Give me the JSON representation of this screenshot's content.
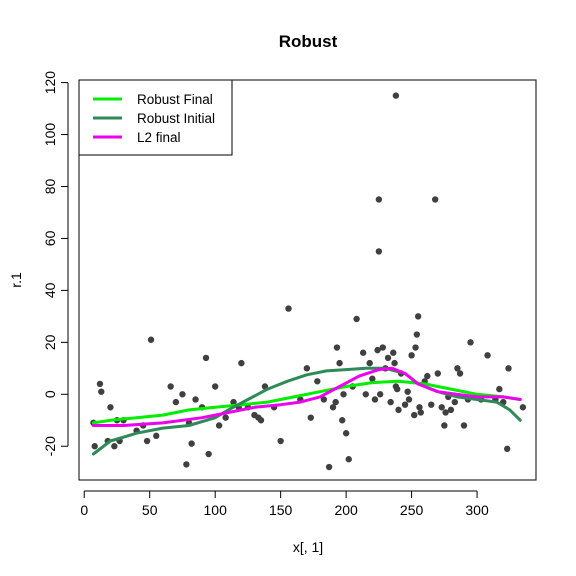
{
  "chart_data": {
    "type": "scatter",
    "title": "Robust",
    "xlabel": "x[, 1]",
    "ylabel": "r.1",
    "xlim": [
      -4,
      345
    ],
    "ylim": [
      -33,
      121
    ],
    "xticks": [
      0,
      50,
      100,
      150,
      200,
      250,
      300
    ],
    "yticks": [
      -20,
      0,
      20,
      40,
      60,
      80,
      100,
      120
    ],
    "grid": false,
    "legend_position": "top-left",
    "point_color": "#404040",
    "points": [
      [
        7,
        -11
      ],
      [
        8,
        -20
      ],
      [
        12,
        4
      ],
      [
        13,
        1
      ],
      [
        18,
        -18
      ],
      [
        20,
        -5
      ],
      [
        23,
        -20
      ],
      [
        25,
        -10
      ],
      [
        27,
        -18
      ],
      [
        30,
        -10
      ],
      [
        40,
        -14
      ],
      [
        45,
        -12
      ],
      [
        48,
        -18
      ],
      [
        51,
        21
      ],
      [
        55,
        -16
      ],
      [
        66,
        3
      ],
      [
        70,
        -3
      ],
      [
        75,
        0
      ],
      [
        78,
        -27
      ],
      [
        80,
        -11
      ],
      [
        82,
        -19
      ],
      [
        85,
        -2
      ],
      [
        90,
        -5
      ],
      [
        93,
        14
      ],
      [
        95,
        -23
      ],
      [
        100,
        3
      ],
      [
        103,
        -12
      ],
      [
        108,
        -9
      ],
      [
        114,
        -3
      ],
      [
        118,
        -5
      ],
      [
        120,
        12
      ],
      [
        125,
        -5
      ],
      [
        130,
        -8
      ],
      [
        133,
        -9
      ],
      [
        135,
        -10
      ],
      [
        138,
        3
      ],
      [
        145,
        -5
      ],
      [
        150,
        -18
      ],
      [
        156,
        33
      ],
      [
        165,
        -2
      ],
      [
        170,
        10
      ],
      [
        173,
        -9
      ],
      [
        178,
        5
      ],
      [
        183,
        -2
      ],
      [
        187,
        -28
      ],
      [
        190,
        -5
      ],
      [
        192,
        -3
      ],
      [
        193,
        18
      ],
      [
        195,
        12
      ],
      [
        197,
        -10
      ],
      [
        198,
        0
      ],
      [
        200,
        -15
      ],
      [
        202,
        -25
      ],
      [
        205,
        3
      ],
      [
        208,
        29
      ],
      [
        213,
        16
      ],
      [
        215,
        0
      ],
      [
        218,
        12
      ],
      [
        220,
        6
      ],
      [
        222,
        -2
      ],
      [
        224,
        17
      ],
      [
        225,
        75
      ],
      [
        225,
        55
      ],
      [
        226,
        0
      ],
      [
        228,
        18
      ],
      [
        230,
        10
      ],
      [
        232,
        14
      ],
      [
        234,
        -3
      ],
      [
        236,
        16
      ],
      [
        237,
        12
      ],
      [
        238,
        115
      ],
      [
        238,
        3
      ],
      [
        239,
        2
      ],
      [
        240,
        -6
      ],
      [
        242,
        8
      ],
      [
        245,
        -4
      ],
      [
        247,
        1
      ],
      [
        248,
        -2
      ],
      [
        250,
        15
      ],
      [
        252,
        -8
      ],
      [
        253,
        18
      ],
      [
        254,
        23
      ],
      [
        255,
        30
      ],
      [
        256,
        -5
      ],
      [
        257,
        -7
      ],
      [
        260,
        5
      ],
      [
        262,
        7
      ],
      [
        265,
        -4
      ],
      [
        268,
        75
      ],
      [
        270,
        8
      ],
      [
        273,
        -5
      ],
      [
        275,
        -12
      ],
      [
        276,
        -7
      ],
      [
        278,
        -1
      ],
      [
        280,
        -6
      ],
      [
        283,
        -3
      ],
      [
        285,
        10
      ],
      [
        287,
        8
      ],
      [
        290,
        -12
      ],
      [
        293,
        -2
      ],
      [
        295,
        20
      ],
      [
        300,
        -1
      ],
      [
        303,
        -2
      ],
      [
        308,
        15
      ],
      [
        314,
        -2
      ],
      [
        317,
        2
      ],
      [
        320,
        -3
      ],
      [
        323,
        -21
      ],
      [
        324,
        10
      ],
      [
        335,
        -5
      ]
    ],
    "series": [
      {
        "name": "Robust Final",
        "color": "#00ee00",
        "x": [
          7,
          20,
          40,
          60,
          80,
          100,
          120,
          140,
          160,
          180,
          200,
          220,
          240,
          260,
          280,
          300,
          320,
          333
        ],
        "y": [
          -11,
          -10,
          -9,
          -8,
          -6,
          -5,
          -4,
          -3,
          -1,
          1,
          3,
          4.5,
          5,
          4,
          2,
          0,
          -1,
          -2
        ]
      },
      {
        "name": "Robust Initial",
        "color": "#2e8b57",
        "x": [
          7,
          20,
          40,
          60,
          80,
          100,
          110,
          125,
          140,
          155,
          170,
          185,
          200,
          215,
          230,
          245,
          255,
          270,
          285,
          300,
          315,
          325,
          333
        ],
        "y": [
          -23,
          -18,
          -15,
          -13,
          -12,
          -9,
          -6,
          -2,
          2,
          5,
          7.5,
          9,
          9.5,
          10,
          10,
          8,
          4,
          1,
          -1,
          -2,
          -3,
          -6,
          -10
        ]
      },
      {
        "name": "L2 final",
        "color": "#ee00ee",
        "x": [
          7,
          30,
          60,
          90,
          110,
          130,
          150,
          165,
          180,
          195,
          210,
          225,
          235,
          245,
          255,
          270,
          285,
          300,
          320,
          333
        ],
        "y": [
          -12,
          -12,
          -11,
          -9,
          -7,
          -5,
          -4,
          -3,
          -1,
          3,
          7,
          9.5,
          10,
          8,
          4,
          1,
          0,
          -1,
          -1,
          -2
        ]
      }
    ]
  }
}
